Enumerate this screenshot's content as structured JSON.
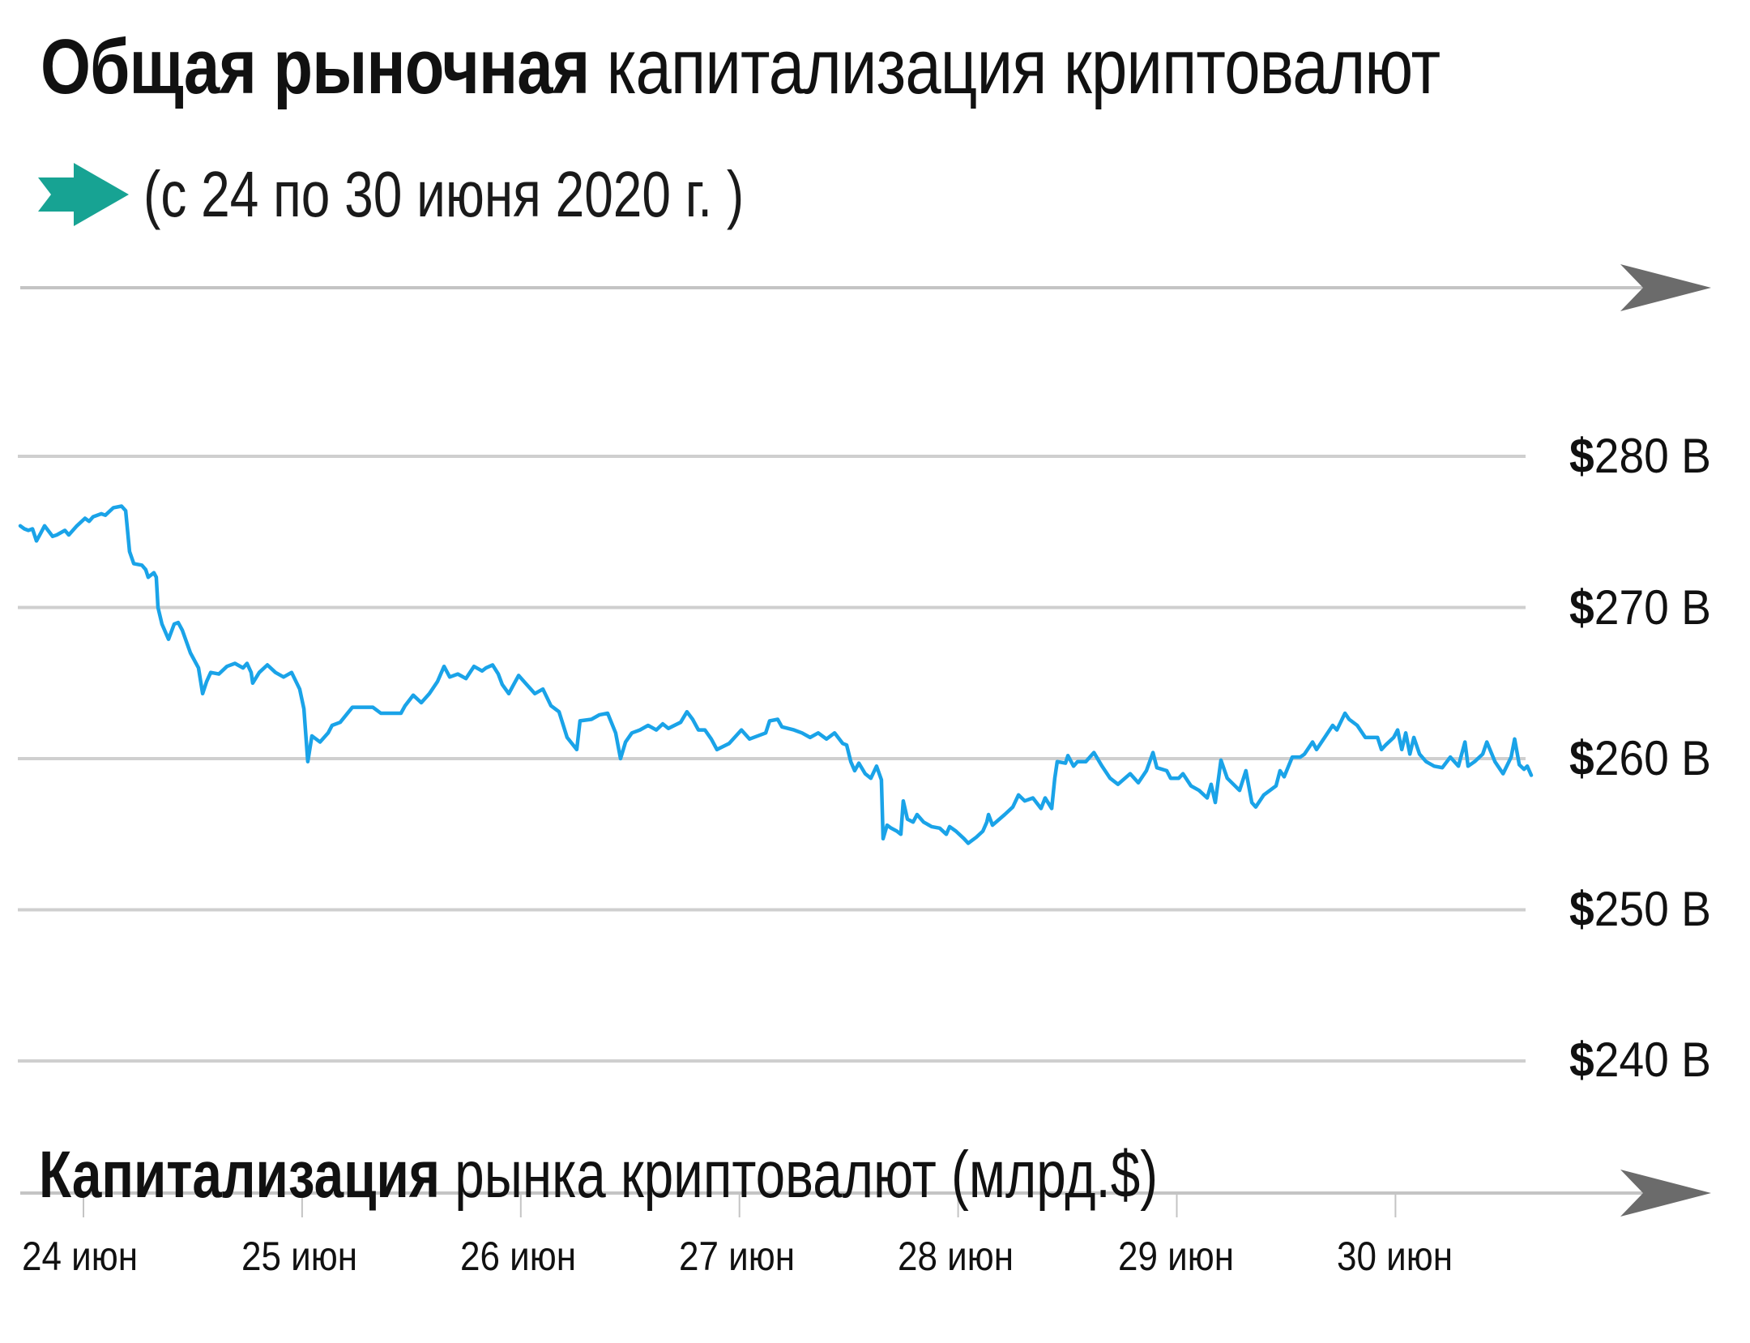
{
  "header": {
    "title_bold": "Общая рыночная",
    "title_light": "капитализация криптовалют",
    "subtitle": "(с 24 по 30 июня 2020 г. )",
    "subtitle_icon": "arrow-right-icon",
    "accent_color": "#17a393"
  },
  "colors": {
    "line": "#1aa3e8",
    "grid": "#cfcfcf",
    "axis": "#c4c4c4",
    "arrow": "#6b6b6b",
    "text": "#111111"
  },
  "y_axis": {
    "labels": [
      {
        "currency": "$",
        "text": "280 B",
        "value": 280
      },
      {
        "currency": "$",
        "text": "270 B",
        "value": 270
      },
      {
        "currency": "$",
        "text": "260 B",
        "value": 260
      },
      {
        "currency": "$",
        "text": "250 B",
        "value": 250
      },
      {
        "currency": "$",
        "text": "240 B",
        "value": 240
      }
    ]
  },
  "x_axis": {
    "title_bold": "Капитализация",
    "title_normal": "рынка криптовалют (млрд.$)",
    "ticks": [
      "24 июн",
      "25 июн",
      "26 июн",
      "27 июн",
      "28 июн",
      "29 июн",
      "30 июн"
    ]
  },
  "chart_data": {
    "type": "line",
    "title": "Общая рыночная капитализация криптовалют",
    "subtitle": "(с 24 по 30 июня 2020 г. )",
    "xlabel": "Капитализация рынка криптовалют (млрд.$)",
    "ylabel": "",
    "categories": [
      "24 июн",
      "25 июн",
      "26 июн",
      "27 июн",
      "28 июн",
      "29 июн",
      "30 июн"
    ],
    "ylim": [
      240,
      280
    ],
    "yticks": [
      240,
      250,
      260,
      270,
      280
    ],
    "ytick_labels": [
      "$240 B",
      "$250 B",
      "$260 B",
      "$270 B",
      "$280 B"
    ],
    "grid": true,
    "legend": null,
    "x_unit": "days since 24 июн 00:00",
    "series": [
      {
        "name": "Капитализация рынка криптовалют (млрд.$)",
        "points": [
          [
            -0.289,
            275.4
          ],
          [
            -0.27,
            275.2
          ],
          [
            -0.252,
            275.1
          ],
          [
            -0.233,
            275.2
          ],
          [
            -0.215,
            274.4
          ],
          [
            -0.196,
            274.9
          ],
          [
            -0.178,
            275.4
          ],
          [
            -0.141,
            274.7
          ],
          [
            -0.122,
            274.8
          ],
          [
            -0.085,
            275.1
          ],
          [
            -0.067,
            274.8
          ],
          [
            -0.03,
            275.4
          ],
          [
            0.007,
            275.9
          ],
          [
            0.026,
            275.7
          ],
          [
            0.044,
            276.0
          ],
          [
            0.082,
            276.2
          ],
          [
            0.1,
            276.1
          ],
          [
            0.137,
            276.6
          ],
          [
            0.174,
            276.7
          ],
          [
            0.193,
            276.4
          ],
          [
            0.211,
            273.7
          ],
          [
            0.23,
            272.9
          ],
          [
            0.267,
            272.8
          ],
          [
            0.285,
            272.5
          ],
          [
            0.296,
            272.0
          ],
          [
            0.322,
            272.3
          ],
          [
            0.333,
            272.0
          ],
          [
            0.341,
            270.0
          ],
          [
            0.359,
            268.9
          ],
          [
            0.389,
            267.9
          ],
          [
            0.415,
            268.9
          ],
          [
            0.433,
            269.0
          ],
          [
            0.452,
            268.5
          ],
          [
            0.489,
            267.0
          ],
          [
            0.526,
            266.0
          ],
          [
            0.545,
            264.3
          ],
          [
            0.563,
            265.1
          ],
          [
            0.582,
            265.7
          ],
          [
            0.619,
            265.6
          ],
          [
            0.656,
            266.1
          ],
          [
            0.693,
            266.3
          ],
          [
            0.73,
            266.0
          ],
          [
            0.748,
            266.3
          ],
          [
            0.767,
            265.7
          ],
          [
            0.774,
            265.0
          ],
          [
            0.804,
            265.7
          ],
          [
            0.841,
            266.2
          ],
          [
            0.878,
            265.7
          ],
          [
            0.915,
            265.4
          ],
          [
            0.952,
            265.7
          ],
          [
            0.989,
            264.6
          ],
          [
            1.008,
            263.3
          ],
          [
            1.026,
            259.8
          ],
          [
            1.045,
            261.5
          ],
          [
            1.082,
            261.1
          ],
          [
            1.119,
            261.7
          ],
          [
            1.137,
            262.2
          ],
          [
            1.174,
            262.4
          ],
          [
            1.23,
            263.4
          ],
          [
            1.323,
            263.4
          ],
          [
            1.36,
            263.0
          ],
          [
            1.452,
            263.0
          ],
          [
            1.471,
            263.5
          ],
          [
            1.508,
            264.2
          ],
          [
            1.545,
            263.7
          ],
          [
            1.582,
            264.3
          ],
          [
            1.619,
            265.1
          ],
          [
            1.649,
            266.1
          ],
          [
            1.675,
            265.4
          ],
          [
            1.712,
            265.6
          ],
          [
            1.749,
            265.3
          ],
          [
            1.786,
            266.1
          ],
          [
            1.823,
            265.8
          ],
          [
            1.841,
            266.0
          ],
          [
            1.871,
            266.2
          ],
          [
            1.897,
            265.6
          ],
          [
            1.915,
            264.9
          ],
          [
            1.945,
            264.3
          ],
          [
            1.96,
            264.7
          ],
          [
            1.99,
            265.5
          ],
          [
            2.027,
            264.9
          ],
          [
            2.064,
            264.3
          ],
          [
            2.101,
            264.6
          ],
          [
            2.138,
            263.5
          ],
          [
            2.175,
            263.1
          ],
          [
            2.212,
            261.4
          ],
          [
            2.256,
            260.6
          ],
          [
            2.271,
            262.5
          ],
          [
            2.323,
            262.6
          ],
          [
            2.36,
            262.9
          ],
          [
            2.397,
            263.0
          ],
          [
            2.434,
            261.7
          ],
          [
            2.456,
            260.0
          ],
          [
            2.479,
            261.1
          ],
          [
            2.508,
            261.7
          ],
          [
            2.545,
            261.9
          ],
          [
            2.582,
            262.2
          ],
          [
            2.62,
            261.9
          ],
          [
            2.649,
            262.3
          ],
          [
            2.675,
            262.0
          ],
          [
            2.731,
            262.4
          ],
          [
            2.76,
            263.1
          ],
          [
            2.786,
            262.6
          ],
          [
            2.812,
            261.9
          ],
          [
            2.842,
            261.9
          ],
          [
            2.871,
            261.3
          ],
          [
            2.897,
            260.6
          ],
          [
            2.953,
            261.0
          ],
          [
            3.009,
            261.9
          ],
          [
            3.046,
            261.3
          ],
          [
            3.12,
            261.7
          ],
          [
            3.138,
            262.5
          ],
          [
            3.175,
            262.6
          ],
          [
            3.194,
            262.1
          ],
          [
            3.249,
            261.9
          ],
          [
            3.286,
            261.7
          ],
          [
            3.323,
            261.4
          ],
          [
            3.36,
            261.7
          ],
          [
            3.398,
            261.3
          ],
          [
            3.435,
            261.7
          ],
          [
            3.472,
            261.0
          ],
          [
            3.49,
            260.9
          ],
          [
            3.509,
            259.8
          ],
          [
            3.527,
            259.2
          ],
          [
            3.546,
            259.7
          ],
          [
            3.575,
            259.0
          ],
          [
            3.601,
            258.7
          ],
          [
            3.627,
            259.5
          ],
          [
            3.649,
            258.6
          ],
          [
            3.657,
            254.7
          ],
          [
            3.675,
            255.6
          ],
          [
            3.694,
            255.4
          ],
          [
            3.72,
            255.2
          ],
          [
            3.738,
            255.0
          ],
          [
            3.749,
            257.2
          ],
          [
            3.768,
            256.0
          ],
          [
            3.794,
            255.8
          ],
          [
            3.812,
            256.3
          ],
          [
            3.842,
            255.8
          ],
          [
            3.879,
            255.5
          ],
          [
            3.916,
            255.4
          ],
          [
            3.946,
            255.0
          ],
          [
            3.961,
            255.5
          ],
          [
            3.99,
            255.2
          ],
          [
            4.027,
            254.7
          ],
          [
            4.046,
            254.4
          ],
          [
            4.083,
            254.8
          ],
          [
            4.113,
            255.2
          ],
          [
            4.131,
            255.8
          ],
          [
            4.139,
            256.3
          ],
          [
            4.157,
            255.6
          ],
          [
            4.213,
            256.3
          ],
          [
            4.25,
            256.8
          ],
          [
            4.276,
            257.6
          ],
          [
            4.305,
            257.2
          ],
          [
            4.342,
            257.4
          ],
          [
            4.379,
            256.7
          ],
          [
            4.398,
            257.4
          ],
          [
            4.428,
            256.7
          ],
          [
            4.442,
            258.7
          ],
          [
            4.453,
            259.8
          ],
          [
            4.491,
            259.7
          ],
          [
            4.502,
            260.2
          ],
          [
            4.528,
            259.5
          ],
          [
            4.546,
            259.8
          ],
          [
            4.584,
            259.8
          ],
          [
            4.621,
            260.4
          ],
          [
            4.658,
            259.5
          ],
          [
            4.695,
            258.7
          ],
          [
            4.731,
            258.3
          ],
          [
            4.787,
            259.0
          ],
          [
            4.824,
            258.4
          ],
          [
            4.861,
            259.2
          ],
          [
            4.891,
            260.4
          ],
          [
            4.909,
            259.4
          ],
          [
            4.954,
            259.2
          ],
          [
            4.972,
            258.7
          ],
          [
            5.009,
            258.7
          ],
          [
            5.028,
            259.0
          ],
          [
            5.065,
            258.2
          ],
          [
            5.102,
            257.9
          ],
          [
            5.139,
            257.4
          ],
          [
            5.157,
            258.3
          ],
          [
            5.176,
            257.1
          ],
          [
            5.202,
            259.9
          ],
          [
            5.231,
            258.7
          ],
          [
            5.287,
            257.9
          ],
          [
            5.316,
            259.2
          ],
          [
            5.343,
            257.1
          ],
          [
            5.361,
            256.8
          ],
          [
            5.398,
            257.6
          ],
          [
            5.454,
            258.2
          ],
          [
            5.472,
            259.2
          ],
          [
            5.491,
            258.8
          ],
          [
            5.528,
            260.1
          ],
          [
            5.565,
            260.1
          ],
          [
            5.584,
            260.3
          ],
          [
            5.621,
            261.1
          ],
          [
            5.639,
            260.6
          ],
          [
            5.676,
            261.4
          ],
          [
            5.713,
            262.2
          ],
          [
            5.732,
            261.9
          ],
          [
            5.769,
            263.0
          ],
          [
            5.788,
            262.6
          ],
          [
            5.825,
            262.2
          ],
          [
            5.862,
            261.4
          ],
          [
            5.918,
            261.4
          ],
          [
            5.936,
            260.6
          ],
          [
            5.955,
            260.9
          ],
          [
            5.992,
            261.4
          ],
          [
            6.01,
            261.9
          ],
          [
            6.029,
            260.6
          ],
          [
            6.047,
            261.7
          ],
          [
            6.066,
            260.3
          ],
          [
            6.084,
            261.4
          ],
          [
            6.11,
            260.3
          ],
          [
            6.14,
            259.8
          ],
          [
            6.177,
            259.5
          ],
          [
            6.214,
            259.4
          ],
          [
            6.251,
            260.1
          ],
          [
            6.288,
            259.5
          ],
          [
            6.318,
            261.1
          ],
          [
            6.332,
            259.5
          ],
          [
            6.362,
            259.8
          ],
          [
            6.399,
            260.3
          ],
          [
            6.418,
            261.1
          ],
          [
            6.455,
            259.8
          ],
          [
            6.492,
            259.0
          ],
          [
            6.529,
            260.1
          ],
          [
            6.545,
            261.3
          ],
          [
            6.566,
            259.6
          ],
          [
            6.588,
            259.3
          ],
          [
            6.603,
            259.5
          ],
          [
            6.621,
            258.9
          ]
        ]
      }
    ]
  }
}
